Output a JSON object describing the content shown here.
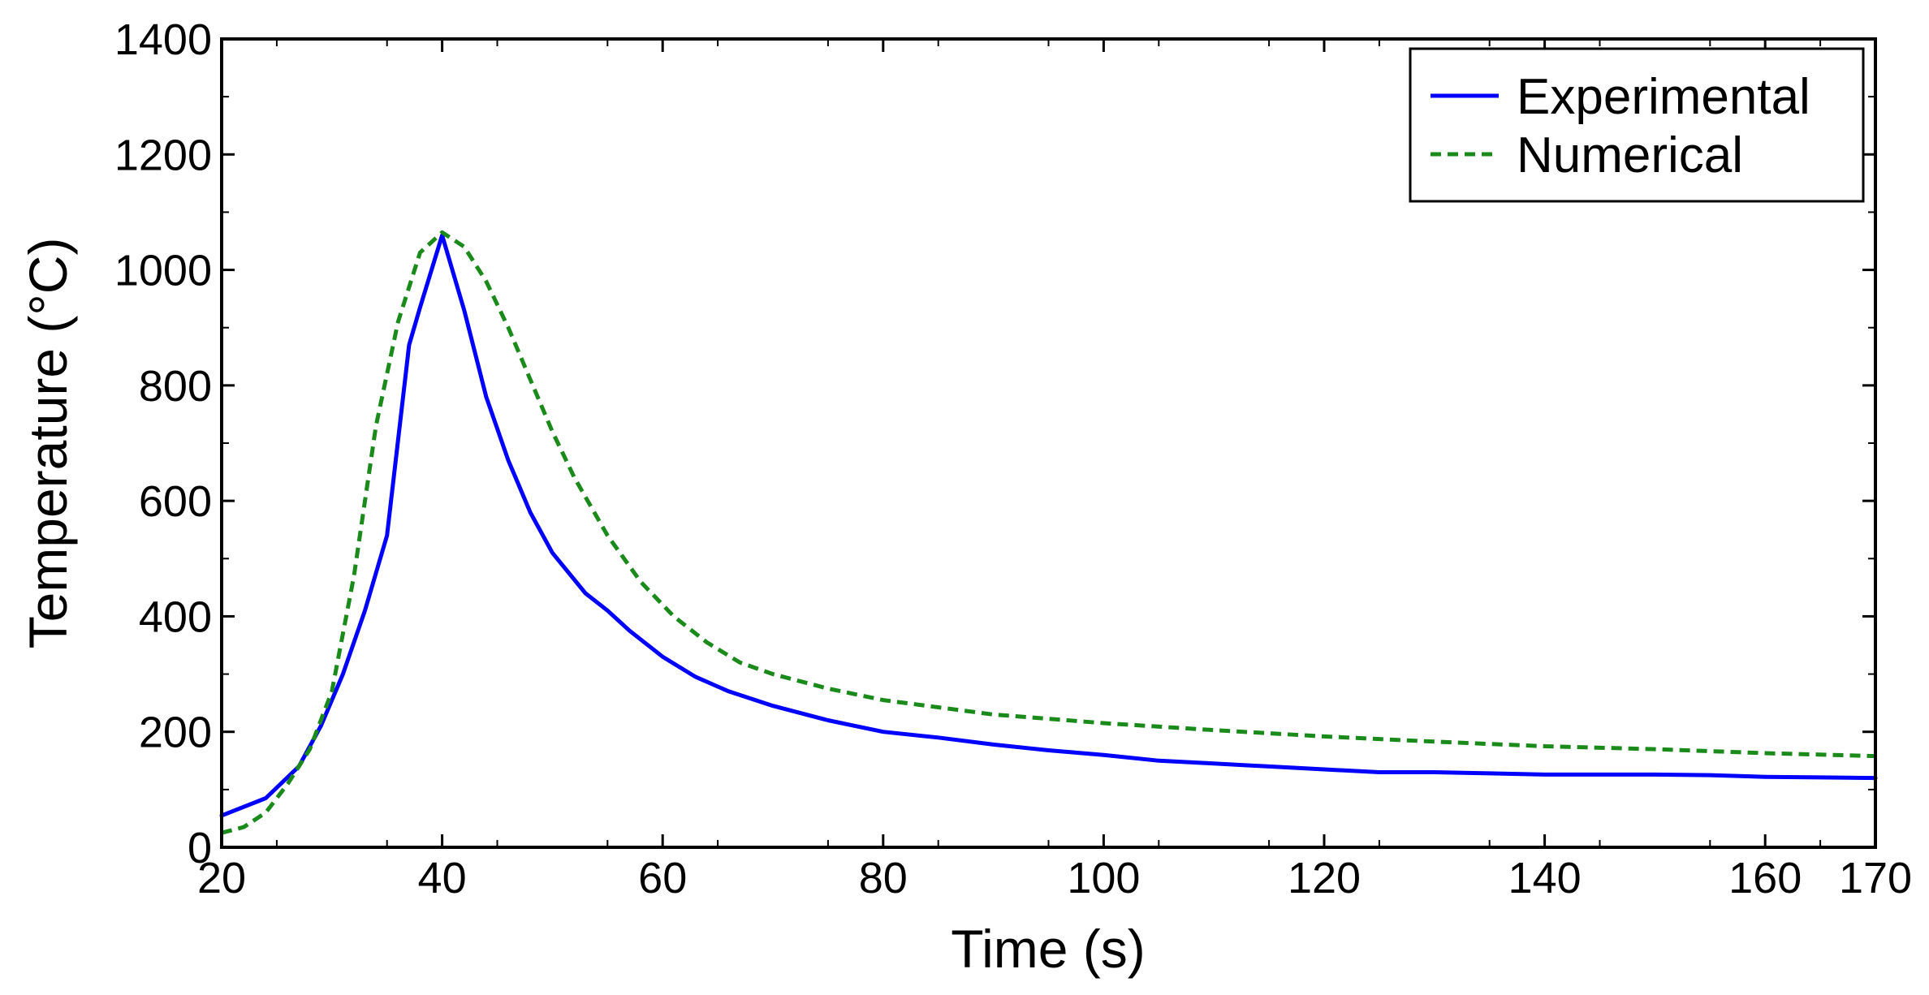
{
  "chart_data": {
    "type": "line",
    "title": "",
    "xlabel": "Time (s)",
    "ylabel": "Temperature (°C)",
    "xlim": [
      20,
      170
    ],
    "ylim": [
      0,
      1400
    ],
    "xticks": [
      20,
      40,
      60,
      80,
      100,
      120,
      140,
      160,
      170
    ],
    "yticks": [
      0,
      200,
      400,
      600,
      800,
      1000,
      1200,
      1400
    ],
    "grid": false,
    "legend_position": "top-right",
    "series": [
      {
        "name": "Experimental",
        "color": "#0000ff",
        "style": "solid",
        "x": [
          20,
          24,
          27,
          29,
          31,
          33,
          35,
          37,
          38,
          40,
          42,
          44,
          46,
          48,
          50,
          53,
          55,
          57,
          60,
          63,
          66,
          70,
          75,
          80,
          85,
          90,
          95,
          100,
          105,
          110,
          115,
          120,
          125,
          130,
          135,
          140,
          145,
          150,
          155,
          160,
          165,
          170
        ],
        "y": [
          55,
          85,
          140,
          210,
          300,
          410,
          540,
          870,
          935,
          1060,
          930,
          780,
          670,
          580,
          510,
          440,
          410,
          375,
          330,
          295,
          270,
          245,
          220,
          200,
          190,
          178,
          168,
          160,
          150,
          145,
          140,
          135,
          130,
          130,
          128,
          126,
          126,
          126,
          125,
          122,
          121,
          120
        ]
      },
      {
        "name": "Numerical",
        "color": "#1a8a1a",
        "style": "dashed",
        "x": [
          20,
          22,
          24,
          26,
          28,
          30,
          32,
          34,
          36,
          38,
          40,
          42,
          44,
          46,
          48,
          50,
          52,
          55,
          58,
          61,
          64,
          67,
          70,
          75,
          80,
          90,
          100,
          110,
          120,
          130,
          140,
          150,
          160,
          170
        ],
        "y": [
          25,
          35,
          60,
          110,
          170,
          270,
          470,
          730,
          910,
          1030,
          1065,
          1040,
          980,
          900,
          810,
          720,
          640,
          540,
          460,
          400,
          355,
          320,
          300,
          275,
          255,
          230,
          215,
          203,
          192,
          183,
          175,
          170,
          163,
          158
        ]
      }
    ]
  }
}
